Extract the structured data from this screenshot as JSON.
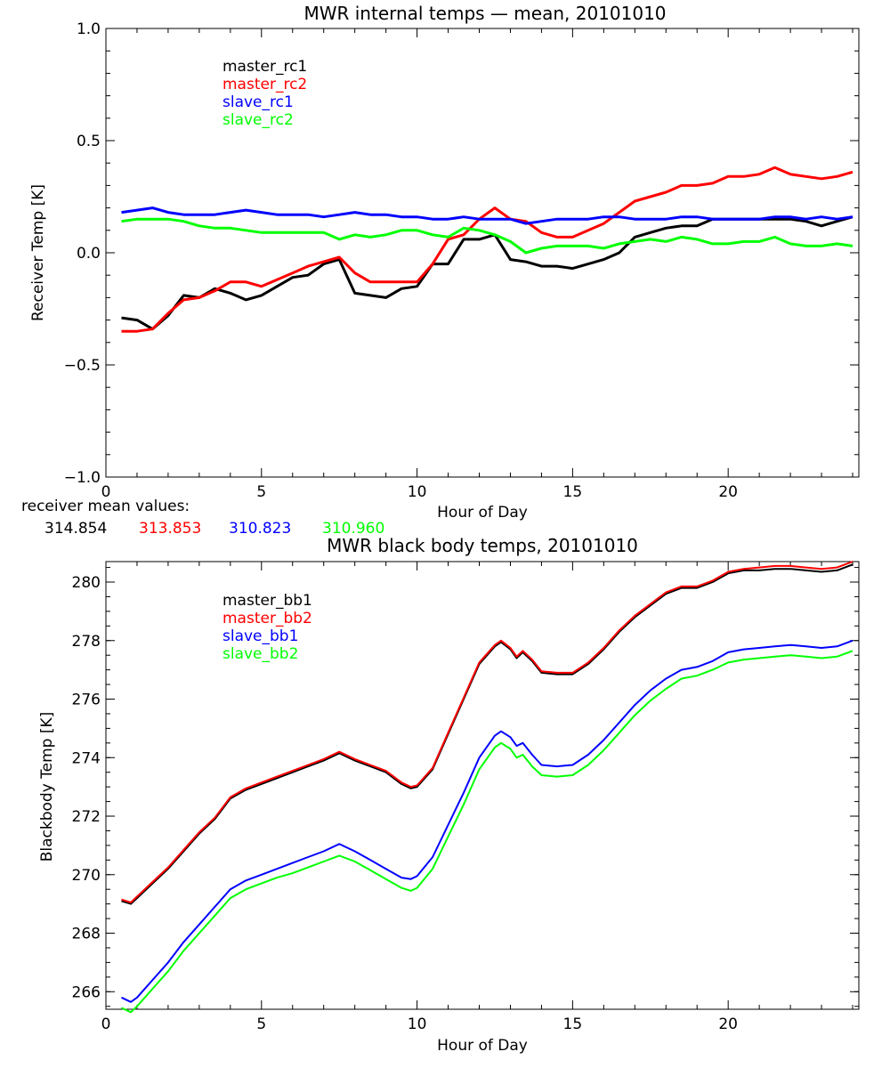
{
  "chart_data": [
    {
      "type": "line",
      "title": "MWR internal temps — mean, 20101010",
      "xlabel": "Hour of Day",
      "ylabel": "Receiver Temp [K]",
      "xlim": [
        0,
        24.2
      ],
      "ylim": [
        -1.0,
        1.0
      ],
      "xticks": [
        0,
        5,
        10,
        15,
        20
      ],
      "xtick_labels": [
        "0",
        "5",
        "10",
        "15",
        "20"
      ],
      "yticks": [
        -1.0,
        -0.5,
        0.0,
        0.5,
        1.0
      ],
      "ytick_labels": [
        "−1.0",
        "−0.5",
        "0.0",
        "0.5",
        "1.0"
      ],
      "legend_position": "top-left",
      "x": [
        0.5,
        1.0,
        1.5,
        2.0,
        2.5,
        3.0,
        3.5,
        4.0,
        4.5,
        5.0,
        5.5,
        6.0,
        6.5,
        7.0,
        7.5,
        8.0,
        8.5,
        9.0,
        9.5,
        10.0,
        10.5,
        11.0,
        11.5,
        12.0,
        12.5,
        13.0,
        13.5,
        14.0,
        14.5,
        15.0,
        15.5,
        16.0,
        16.5,
        17.0,
        17.5,
        18.0,
        18.5,
        19.0,
        19.5,
        20.0,
        20.5,
        21.0,
        21.5,
        22.0,
        22.5,
        23.0,
        23.5,
        24.0
      ],
      "series": [
        {
          "name": "master_rc1",
          "color": "#000000",
          "values": [
            -0.29,
            -0.3,
            -0.34,
            -0.28,
            -0.19,
            -0.2,
            -0.16,
            -0.18,
            -0.21,
            -0.19,
            -0.15,
            -0.11,
            -0.1,
            -0.05,
            -0.03,
            -0.18,
            -0.19,
            -0.2,
            -0.16,
            -0.15,
            -0.05,
            -0.05,
            0.06,
            0.06,
            0.08,
            -0.03,
            -0.04,
            -0.06,
            -0.06,
            -0.07,
            -0.05,
            -0.03,
            0.0,
            0.07,
            0.09,
            0.11,
            0.12,
            0.12,
            0.15,
            0.15,
            0.15,
            0.15,
            0.15,
            0.15,
            0.14,
            0.12,
            0.14,
            0.16
          ]
        },
        {
          "name": "master_rc2",
          "color": "#ff0000",
          "values": [
            -0.35,
            -0.35,
            -0.34,
            -0.27,
            -0.21,
            -0.2,
            -0.17,
            -0.13,
            -0.13,
            -0.15,
            -0.12,
            -0.09,
            -0.06,
            -0.04,
            -0.02,
            -0.09,
            -0.13,
            -0.13,
            -0.13,
            -0.13,
            -0.05,
            0.06,
            0.08,
            0.15,
            0.2,
            0.15,
            0.14,
            0.09,
            0.07,
            0.07,
            0.1,
            0.13,
            0.18,
            0.23,
            0.25,
            0.27,
            0.3,
            0.3,
            0.31,
            0.34,
            0.34,
            0.35,
            0.38,
            0.35,
            0.34,
            0.33,
            0.34,
            0.36
          ]
        },
        {
          "name": "slave_rc1",
          "color": "#0000ff",
          "values": [
            0.18,
            0.19,
            0.2,
            0.18,
            0.17,
            0.17,
            0.17,
            0.18,
            0.19,
            0.18,
            0.17,
            0.17,
            0.17,
            0.16,
            0.17,
            0.18,
            0.17,
            0.17,
            0.16,
            0.16,
            0.15,
            0.15,
            0.16,
            0.15,
            0.15,
            0.15,
            0.13,
            0.14,
            0.15,
            0.15,
            0.15,
            0.16,
            0.16,
            0.15,
            0.15,
            0.15,
            0.16,
            0.16,
            0.15,
            0.15,
            0.15,
            0.15,
            0.16,
            0.16,
            0.15,
            0.16,
            0.15,
            0.16
          ]
        },
        {
          "name": "slave_rc2",
          "color": "#00ff00",
          "values": [
            0.14,
            0.15,
            0.15,
            0.15,
            0.14,
            0.12,
            0.11,
            0.11,
            0.1,
            0.09,
            0.09,
            0.09,
            0.09,
            0.09,
            0.06,
            0.08,
            0.07,
            0.08,
            0.1,
            0.1,
            0.08,
            0.07,
            0.11,
            0.1,
            0.08,
            0.05,
            0.0,
            0.02,
            0.03,
            0.03,
            0.03,
            0.02,
            0.04,
            0.05,
            0.06,
            0.05,
            0.07,
            0.06,
            0.04,
            0.04,
            0.05,
            0.05,
            0.07,
            0.04,
            0.03,
            0.03,
            0.04,
            0.03
          ]
        }
      ],
      "annotation_label": "receiver mean values:",
      "mean_values": [
        {
          "text": "314.854",
          "color": "#000000"
        },
        {
          "text": "313.853",
          "color": "#ff0000"
        },
        {
          "text": "310.823",
          "color": "#0000ff"
        },
        {
          "text": "310.960",
          "color": "#00ff00"
        }
      ]
    },
    {
      "type": "line",
      "title": "MWR black body temps, 20101010",
      "xlabel": "Hour of Day",
      "ylabel": "Blackbody Temp [K]",
      "xlim": [
        0,
        24.2
      ],
      "ylim": [
        265.4,
        280.7
      ],
      "xticks": [
        0,
        5,
        10,
        15,
        20
      ],
      "xtick_labels": [
        "0",
        "5",
        "10",
        "15",
        "20"
      ],
      "yticks": [
        266,
        268,
        270,
        272,
        274,
        276,
        278,
        280
      ],
      "ytick_labels": [
        "266",
        "268",
        "270",
        "272",
        "274",
        "276",
        "278",
        "280"
      ],
      "legend_position": "top-left",
      "x": [
        0.5,
        0.8,
        1.0,
        1.5,
        2.0,
        2.5,
        3.0,
        3.5,
        4.0,
        4.5,
        5.0,
        5.5,
        6.0,
        6.5,
        7.0,
        7.5,
        8.0,
        8.5,
        9.0,
        9.5,
        9.8,
        10.0,
        10.5,
        11.0,
        11.5,
        12.0,
        12.5,
        12.7,
        13.0,
        13.2,
        13.4,
        13.7,
        14.0,
        14.5,
        15.0,
        15.5,
        16.0,
        16.5,
        17.0,
        17.5,
        18.0,
        18.5,
        19.0,
        19.5,
        20.0,
        20.5,
        21.0,
        21.5,
        22.0,
        22.5,
        23.0,
        23.5,
        24.0
      ],
      "series": [
        {
          "name": "master_bb1",
          "color": "#000000",
          "values": [
            269.1,
            269.0,
            269.2,
            269.7,
            270.2,
            270.8,
            271.4,
            271.9,
            272.6,
            272.9,
            273.1,
            273.3,
            273.5,
            273.7,
            273.9,
            274.15,
            273.9,
            273.7,
            273.5,
            273.1,
            272.95,
            273.0,
            273.6,
            274.8,
            276.0,
            277.2,
            277.8,
            277.95,
            277.7,
            277.4,
            277.6,
            277.3,
            276.9,
            276.85,
            276.85,
            277.2,
            277.7,
            278.3,
            278.8,
            279.2,
            279.6,
            279.8,
            279.8,
            280.0,
            280.3,
            280.4,
            280.4,
            280.45,
            280.45,
            280.4,
            280.35,
            280.4,
            280.6
          ]
        },
        {
          "name": "master_bb2",
          "color": "#ff0000",
          "values": [
            269.15,
            269.05,
            269.25,
            269.75,
            270.25,
            270.85,
            271.45,
            271.95,
            272.65,
            272.95,
            273.15,
            273.35,
            273.55,
            273.75,
            273.95,
            274.2,
            273.95,
            273.75,
            273.55,
            273.15,
            273.0,
            273.05,
            273.65,
            274.85,
            276.05,
            277.25,
            277.85,
            278.0,
            277.75,
            277.45,
            277.65,
            277.35,
            276.95,
            276.9,
            276.9,
            277.25,
            277.75,
            278.35,
            278.85,
            279.25,
            279.65,
            279.85,
            279.85,
            280.05,
            280.35,
            280.45,
            280.5,
            280.55,
            280.55,
            280.5,
            280.45,
            280.5,
            280.7
          ]
        },
        {
          "name": "slave_bb1",
          "color": "#0000ff",
          "values": [
            265.8,
            265.65,
            265.8,
            266.4,
            267.0,
            267.7,
            268.3,
            268.9,
            269.5,
            269.8,
            270.0,
            270.2,
            270.4,
            270.6,
            270.8,
            271.05,
            270.8,
            270.5,
            270.2,
            269.9,
            269.85,
            269.95,
            270.6,
            271.7,
            272.8,
            274.0,
            274.75,
            274.9,
            274.7,
            274.4,
            274.5,
            274.1,
            273.75,
            273.7,
            273.75,
            274.1,
            274.6,
            275.2,
            275.8,
            276.3,
            276.7,
            277.0,
            277.1,
            277.3,
            277.6,
            277.7,
            277.75,
            277.8,
            277.85,
            277.8,
            277.75,
            277.8,
            278.0
          ]
        },
        {
          "name": "slave_bb2",
          "color": "#00ff00",
          "values": [
            265.45,
            265.3,
            265.5,
            266.1,
            266.7,
            267.4,
            268.0,
            268.6,
            269.2,
            269.5,
            269.7,
            269.9,
            270.05,
            270.25,
            270.45,
            270.65,
            270.45,
            270.15,
            269.85,
            269.55,
            269.45,
            269.55,
            270.2,
            271.3,
            272.4,
            273.6,
            274.35,
            274.5,
            274.3,
            274.0,
            274.1,
            273.7,
            273.4,
            273.35,
            273.4,
            273.75,
            274.25,
            274.85,
            275.45,
            275.95,
            276.35,
            276.7,
            276.8,
            277.0,
            277.25,
            277.35,
            277.4,
            277.45,
            277.5,
            277.45,
            277.4,
            277.45,
            277.65
          ]
        }
      ]
    }
  ]
}
